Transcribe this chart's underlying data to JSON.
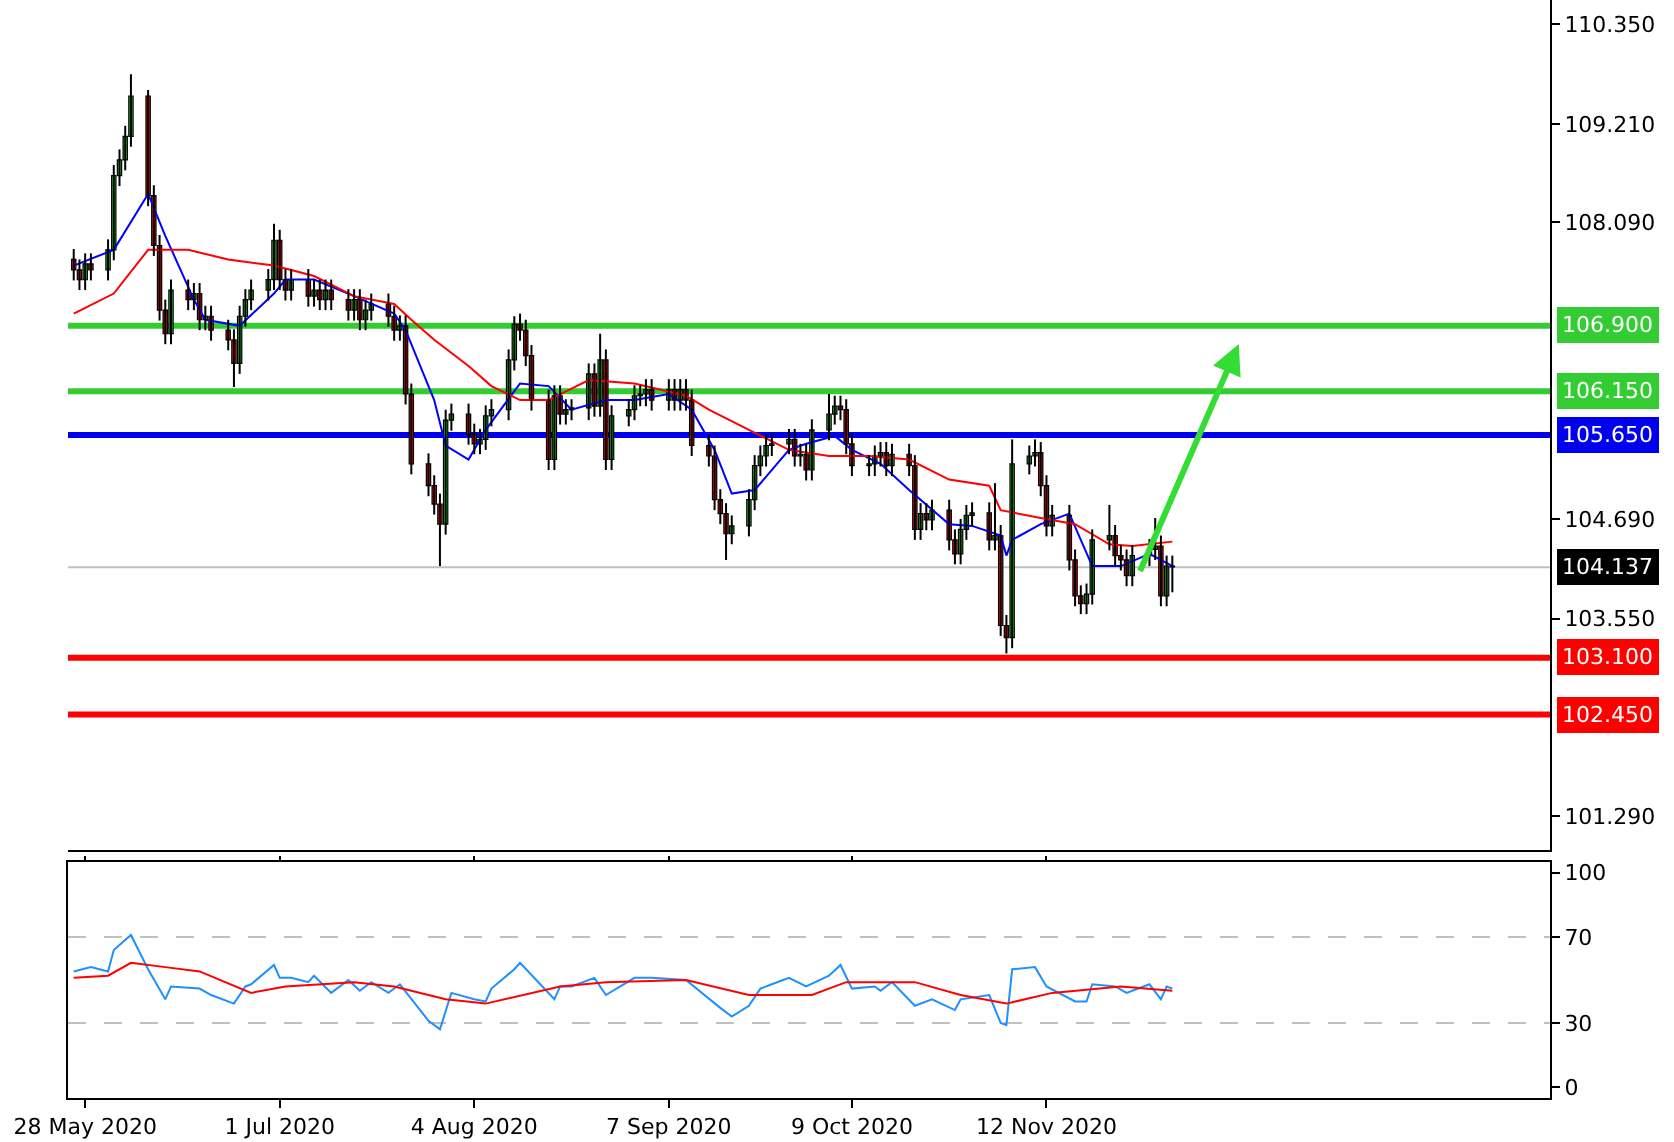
{
  "chart_data": [
    {
      "type": "candlestick",
      "tick_labels": "y",
      "x": [
        "2020-05-26",
        "2020-05-27",
        "2020-05-28",
        "2020-05-29",
        "2020-06-01",
        "2020-06-02",
        "2020-06-03",
        "2020-06-04",
        "2020-06-05",
        "2020-06-08",
        "2020-06-09",
        "2020-06-10",
        "2020-06-11",
        "2020-06-12",
        "2020-06-15",
        "2020-06-16",
        "2020-06-17",
        "2020-06-18",
        "2020-06-19",
        "2020-06-22",
        "2020-06-23",
        "2020-06-24",
        "2020-06-25",
        "2020-06-26",
        "2020-06-29",
        "2020-06-30",
        "2020-07-01",
        "2020-07-02",
        "2020-07-03",
        "2020-07-06",
        "2020-07-07",
        "2020-07-08",
        "2020-07-09",
        "2020-07-10",
        "2020-07-13",
        "2020-07-14",
        "2020-07-15",
        "2020-07-16",
        "2020-07-17",
        "2020-07-20",
        "2020-07-21",
        "2020-07-22",
        "2020-07-23",
        "2020-07-24",
        "2020-07-27",
        "2020-07-28",
        "2020-07-29",
        "2020-07-30",
        "2020-07-31",
        "2020-08-03",
        "2020-08-04",
        "2020-08-05",
        "2020-08-06",
        "2020-08-07",
        "2020-08-10",
        "2020-08-11",
        "2020-08-12",
        "2020-08-13",
        "2020-08-14",
        "2020-08-17",
        "2020-08-18",
        "2020-08-19",
        "2020-08-20",
        "2020-08-21",
        "2020-08-24",
        "2020-08-25",
        "2020-08-26",
        "2020-08-27",
        "2020-08-28",
        "2020-08-31",
        "2020-09-01",
        "2020-09-02",
        "2020-09-03",
        "2020-09-04",
        "2020-09-07",
        "2020-09-08",
        "2020-09-09",
        "2020-09-10",
        "2020-09-11",
        "2020-09-14",
        "2020-09-15",
        "2020-09-16",
        "2020-09-17",
        "2020-09-18",
        "2020-09-21",
        "2020-09-22",
        "2020-09-23",
        "2020-09-24",
        "2020-09-25",
        "2020-09-28",
        "2020-09-29",
        "2020-09-30",
        "2020-10-01",
        "2020-10-02",
        "2020-10-05",
        "2020-10-06",
        "2020-10-07",
        "2020-10-08",
        "2020-10-09",
        "2020-10-12",
        "2020-10-13",
        "2020-10-14",
        "2020-10-15",
        "2020-10-16",
        "2020-10-19",
        "2020-10-20",
        "2020-10-21",
        "2020-10-22",
        "2020-10-23",
        "2020-10-26",
        "2020-10-27",
        "2020-10-28",
        "2020-10-29",
        "2020-10-30",
        "2020-11-02",
        "2020-11-03",
        "2020-11-04",
        "2020-11-05",
        "2020-11-06",
        "2020-11-09",
        "2020-11-10",
        "2020-11-11",
        "2020-11-12",
        "2020-11-13",
        "2020-11-16",
        "2020-11-17",
        "2020-11-18",
        "2020-11-19",
        "2020-11-20",
        "2020-11-23",
        "2020-11-24",
        "2020-11-25",
        "2020-11-26",
        "2020-11-27",
        "2020-11-30",
        "2020-12-01",
        "2020-12-02",
        "2020-12-03",
        "2020-12-04"
      ],
      "ohlc": [
        [
          107.66,
          107.78,
          107.42,
          107.54
        ],
        [
          107.54,
          107.66,
          107.31,
          107.43
        ],
        [
          107.43,
          107.73,
          107.31,
          107.61
        ],
        [
          107.61,
          107.73,
          107.42,
          107.54
        ],
        [
          107.54,
          107.89,
          107.42,
          107.77
        ],
        [
          107.77,
          108.74,
          107.65,
          108.62
        ],
        [
          108.62,
          108.92,
          108.5,
          108.8
        ],
        [
          108.8,
          109.19,
          108.68,
          109.07
        ],
        [
          109.07,
          109.78,
          108.95,
          109.53
        ],
        [
          109.53,
          109.6,
          108.27,
          108.39
        ],
        [
          108.39,
          108.51,
          107.7,
          107.82
        ],
        [
          107.82,
          107.94,
          106.96,
          107.08
        ],
        [
          107.08,
          107.2,
          106.69,
          106.81
        ],
        [
          106.81,
          107.43,
          106.69,
          107.31
        ],
        [
          107.31,
          107.43,
          107.08,
          107.2
        ],
        [
          107.2,
          107.39,
          107.08,
          107.27
        ],
        [
          107.27,
          107.39,
          106.85,
          106.97
        ],
        [
          106.97,
          107.13,
          106.85,
          107.01
        ],
        [
          107.01,
          107.13,
          106.73,
          106.85
        ],
        [
          106.85,
          106.97,
          106.62,
          106.74
        ],
        [
          106.74,
          106.86,
          106.2,
          106.47
        ],
        [
          106.47,
          107.13,
          106.35,
          107.01
        ],
        [
          107.01,
          107.32,
          106.89,
          107.2
        ],
        [
          107.2,
          107.43,
          107.08,
          107.31
        ],
        [
          107.31,
          107.55,
          107.19,
          107.43
        ],
        [
          107.43,
          108.07,
          107.31,
          107.88
        ],
        [
          107.88,
          108.0,
          107.31,
          107.43
        ],
        [
          107.43,
          107.55,
          107.19,
          107.31
        ],
        [
          107.31,
          107.55,
          107.19,
          107.43
        ],
        [
          107.43,
          107.55,
          107.12,
          107.24
        ],
        [
          107.24,
          107.43,
          107.12,
          107.31
        ],
        [
          107.31,
          107.43,
          107.08,
          107.2
        ],
        [
          107.2,
          107.43,
          107.08,
          107.31
        ],
        [
          107.31,
          107.43,
          107.08,
          107.2
        ],
        [
          107.2,
          107.32,
          106.96,
          107.08
        ],
        [
          107.08,
          107.32,
          106.96,
          107.2
        ],
        [
          107.2,
          107.32,
          106.85,
          106.97
        ],
        [
          106.97,
          107.2,
          106.85,
          107.08
        ],
        [
          107.08,
          107.27,
          106.96,
          107.15
        ],
        [
          107.15,
          107.27,
          106.89,
          107.01
        ],
        [
          107.01,
          107.13,
          106.73,
          106.85
        ],
        [
          106.85,
          107.02,
          106.73,
          106.9
        ],
        [
          106.9,
          107.02,
          106.0,
          106.12
        ],
        [
          106.12,
          106.24,
          105.2,
          105.32
        ],
        [
          105.32,
          105.44,
          104.95,
          105.07
        ],
        [
          105.07,
          105.19,
          104.74,
          104.86
        ],
        [
          104.86,
          104.98,
          104.15,
          104.63
        ],
        [
          104.63,
          105.94,
          104.51,
          105.82
        ],
        [
          105.82,
          106.01,
          105.7,
          105.89
        ],
        [
          105.89,
          106.01,
          105.54,
          105.66
        ],
        [
          105.66,
          105.78,
          105.43,
          105.55
        ],
        [
          105.55,
          105.72,
          105.43,
          105.6
        ],
        [
          105.6,
          105.99,
          105.48,
          105.87
        ],
        [
          105.87,
          106.06,
          105.75,
          105.94
        ],
        [
          105.94,
          106.63,
          105.82,
          106.51
        ],
        [
          106.51,
          107.01,
          106.39,
          106.92
        ],
        [
          106.92,
          107.04,
          106.73,
          106.85
        ],
        [
          106.85,
          106.97,
          106.44,
          106.56
        ],
        [
          106.56,
          106.68,
          105.93,
          106.05
        ],
        [
          106.05,
          106.17,
          105.25,
          105.37
        ],
        [
          105.37,
          106.22,
          105.25,
          106.1
        ],
        [
          106.1,
          106.22,
          105.77,
          105.89
        ],
        [
          105.89,
          106.06,
          105.77,
          105.94
        ],
        [
          105.94,
          106.06,
          105.82,
          105.96
        ],
        [
          105.96,
          106.47,
          105.82,
          106.35
        ],
        [
          106.35,
          106.47,
          105.86,
          105.98
        ],
        [
          105.98,
          106.81,
          105.86,
          106.51
        ],
        [
          106.51,
          106.63,
          105.25,
          105.37
        ],
        [
          105.37,
          105.99,
          105.25,
          105.87
        ],
        [
          105.87,
          106.06,
          105.75,
          105.94
        ],
        [
          105.94,
          106.22,
          105.82,
          106.1
        ],
        [
          106.1,
          106.22,
          105.98,
          106.12
        ],
        [
          106.12,
          106.29,
          105.98,
          106.17
        ],
        [
          106.17,
          106.29,
          105.93,
          106.05
        ],
        [
          106.05,
          106.29,
          105.93,
          106.17
        ],
        [
          106.17,
          106.29,
          105.93,
          106.05
        ],
        [
          106.05,
          106.29,
          105.93,
          106.17
        ],
        [
          106.17,
          106.29,
          105.93,
          106.05
        ],
        [
          106.05,
          106.17,
          105.41,
          105.53
        ],
        [
          105.53,
          105.65,
          105.29,
          105.41
        ],
        [
          105.41,
          105.53,
          104.79,
          104.91
        ],
        [
          104.91,
          105.03,
          104.63,
          104.75
        ],
        [
          104.75,
          104.87,
          104.22,
          104.52
        ],
        [
          104.52,
          104.73,
          104.4,
          104.61
        ],
        [
          104.61,
          105.03,
          104.49,
          104.91
        ],
        [
          104.91,
          105.42,
          104.79,
          105.3
        ],
        [
          105.3,
          105.53,
          105.18,
          105.41
        ],
        [
          105.41,
          105.65,
          105.29,
          105.53
        ],
        [
          105.53,
          105.67,
          105.41,
          105.55
        ],
        [
          105.55,
          105.72,
          105.43,
          105.6
        ],
        [
          105.6,
          105.72,
          105.29,
          105.41
        ],
        [
          105.41,
          105.55,
          105.29,
          105.43
        ],
        [
          105.43,
          105.55,
          105.13,
          105.25
        ],
        [
          105.25,
          105.83,
          105.13,
          105.71
        ],
        [
          105.71,
          106.12,
          105.59,
          105.89
        ],
        [
          105.89,
          106.1,
          105.77,
          105.98
        ],
        [
          105.98,
          106.1,
          105.82,
          105.94
        ],
        [
          105.94,
          106.06,
          105.43,
          105.55
        ],
        [
          105.55,
          105.67,
          105.18,
          105.3
        ],
        [
          105.3,
          105.42,
          105.18,
          105.32
        ],
        [
          105.32,
          105.53,
          105.18,
          105.41
        ],
        [
          105.41,
          105.57,
          105.29,
          105.45
        ],
        [
          105.45,
          105.57,
          105.18,
          105.3
        ],
        [
          105.3,
          105.55,
          105.18,
          105.43
        ],
        [
          105.43,
          105.55,
          105.18,
          105.3
        ],
        [
          105.3,
          105.42,
          104.45,
          104.57
        ],
        [
          104.57,
          104.87,
          104.45,
          104.75
        ],
        [
          104.75,
          104.87,
          104.56,
          104.68
        ],
        [
          104.68,
          104.91,
          104.56,
          104.79
        ],
        [
          104.79,
          104.91,
          104.33,
          104.45
        ],
        [
          104.45,
          104.57,
          104.17,
          104.29
        ],
        [
          104.29,
          104.69,
          104.17,
          104.57
        ],
        [
          104.57,
          104.85,
          104.45,
          104.73
        ],
        [
          104.73,
          104.88,
          104.61,
          104.76
        ],
        [
          104.76,
          104.88,
          104.33,
          104.45
        ],
        [
          104.45,
          105.1,
          104.33,
          104.5
        ],
        [
          104.5,
          104.62,
          103.35,
          103.47
        ],
        [
          103.47,
          103.59,
          103.15,
          103.33
        ],
        [
          103.33,
          105.6,
          103.21,
          105.32
        ],
        [
          105.32,
          105.53,
          105.2,
          105.41
        ],
        [
          105.41,
          105.6,
          105.29,
          105.45
        ],
        [
          105.45,
          105.57,
          104.95,
          105.07
        ],
        [
          105.07,
          105.19,
          104.49,
          104.61
        ],
        [
          104.61,
          104.85,
          104.49,
          104.73
        ],
        [
          104.73,
          104.85,
          104.1,
          104.22
        ],
        [
          104.22,
          104.34,
          103.69,
          103.81
        ],
        [
          103.81,
          103.93,
          103.6,
          103.72
        ],
        [
          103.72,
          103.95,
          103.6,
          103.83
        ],
        [
          103.83,
          104.57,
          103.71,
          104.45
        ],
        [
          104.45,
          104.85,
          104.33,
          104.5
        ],
        [
          104.5,
          104.62,
          104.15,
          104.27
        ],
        [
          104.27,
          104.39,
          104.1,
          104.22
        ],
        [
          104.22,
          104.34,
          103.92,
          104.04
        ],
        [
          104.04,
          104.39,
          103.92,
          104.27
        ],
        [
          104.27,
          104.46,
          104.15,
          104.34
        ],
        [
          104.34,
          104.7,
          104.22,
          104.38
        ],
        [
          104.38,
          104.5,
          103.69,
          103.81
        ],
        [
          103.81,
          104.27,
          103.69,
          104.15
        ],
        [
          104.15,
          104.27,
          103.85,
          104.14
        ]
      ],
      "series": [
        {
          "type": "line",
          "color": "#0000ff",
          "x": [
            "2020-05-26",
            "2020-06-02",
            "2020-06-08",
            "2020-06-11",
            "2020-06-16",
            "2020-06-18",
            "2020-06-24",
            "2020-06-30",
            "2020-07-02",
            "2020-07-07",
            "2020-07-14",
            "2020-07-21",
            "2020-07-23",
            "2020-07-28",
            "2020-07-30",
            "2020-08-03",
            "2020-08-06",
            "2020-08-12",
            "2020-08-17",
            "2020-08-21",
            "2020-08-27",
            "2020-09-01",
            "2020-09-07",
            "2020-09-11",
            "2020-09-15",
            "2020-09-18",
            "2020-09-22",
            "2020-09-28",
            "2020-10-01",
            "2020-10-06",
            "2020-10-09",
            "2020-10-14",
            "2020-10-19",
            "2020-10-26",
            "2020-10-30",
            "2020-11-04",
            "2020-11-05",
            "2020-11-06",
            "2020-11-11",
            "2020-11-16",
            "2020-11-18",
            "2020-11-20",
            "2020-11-25",
            "2020-11-30",
            "2020-12-02",
            "2020-12-04"
          ],
          "values": [
            107.59,
            107.77,
            108.41,
            107.93,
            107.2,
            106.97,
            106.9,
            107.27,
            107.43,
            107.43,
            107.24,
            107.04,
            106.85,
            106.05,
            105.53,
            105.37,
            105.71,
            106.24,
            106.21,
            105.94,
            106.05,
            106.05,
            106.12,
            105.94,
            105.48,
            104.98,
            105.02,
            105.48,
            105.55,
            105.64,
            105.48,
            105.32,
            105.02,
            104.63,
            104.61,
            104.5,
            104.27,
            104.45,
            104.63,
            104.75,
            104.45,
            104.15,
            104.15,
            104.29,
            104.22,
            104.15
          ]
        },
        {
          "type": "line",
          "color": "#ff0000",
          "x": [
            "2020-05-26",
            "2020-06-02",
            "2020-06-08",
            "2020-06-15",
            "2020-06-22",
            "2020-06-30",
            "2020-07-07",
            "2020-07-14",
            "2020-07-21",
            "2020-07-24",
            "2020-07-28",
            "2020-08-03",
            "2020-08-07",
            "2020-08-12",
            "2020-08-17",
            "2020-08-24",
            "2020-09-01",
            "2020-09-10",
            "2020-09-14",
            "2020-09-21",
            "2020-09-28",
            "2020-10-05",
            "2020-10-12",
            "2020-10-19",
            "2020-10-26",
            "2020-11-02",
            "2020-11-04",
            "2020-11-11",
            "2020-11-17",
            "2020-11-23",
            "2020-11-27",
            "2020-12-04"
          ],
          "values": [
            107.04,
            107.27,
            107.77,
            107.77,
            107.66,
            107.59,
            107.47,
            107.24,
            107.15,
            106.97,
            106.74,
            106.44,
            106.21,
            106.05,
            106.05,
            106.28,
            106.24,
            106.1,
            105.94,
            105.71,
            105.48,
            105.41,
            105.41,
            105.37,
            105.14,
            105.07,
            104.79,
            104.7,
            104.63,
            104.4,
            104.38,
            104.43
          ]
        }
      ],
      "xlim": [
        "2020-05-25",
        "2021-02-08"
      ],
      "ylim": [
        100.9,
        110.63
      ],
      "yticks": [
        {
          "value": 110.35,
          "label": "110.350"
        },
        {
          "value": 109.21,
          "label": "109.210"
        },
        {
          "value": 108.09,
          "label": "108.090"
        },
        {
          "value": 104.69,
          "label": "104.690"
        },
        {
          "value": 103.55,
          "label": "103.550"
        },
        {
          "value": 101.29,
          "label": "101.290"
        }
      ],
      "ref_lines": [
        {
          "axis": "y",
          "value": 106.9,
          "label": "106.900",
          "color": "#33cc33"
        },
        {
          "axis": "y",
          "value": 106.15,
          "label": "106.150",
          "color": "#33cc33"
        },
        {
          "axis": "y",
          "value": 105.65,
          "label": "105.650",
          "color": "#0000ee"
        },
        {
          "axis": "y",
          "value": 104.137,
          "label": "104.137",
          "color": "#c0c0c0",
          "line_style": "solid"
        },
        {
          "axis": "y",
          "value": 103.1,
          "label": "103.100",
          "color": "#ff0000"
        },
        {
          "axis": "y",
          "value": 102.45,
          "label": "102.450",
          "color": "#ff0000"
        }
      ]
    },
    {
      "type": "line",
      "series": [
        {
          "color": "#1e90ff",
          "x": [
            "2020-05-26",
            "2020-05-29",
            "2020-06-01",
            "2020-06-02",
            "2020-06-05",
            "2020-06-08",
            "2020-06-11",
            "2020-06-12",
            "2020-06-17",
            "2020-06-19",
            "2020-06-23",
            "2020-06-25",
            "2020-06-26",
            "2020-06-30",
            "2020-07-01",
            "2020-07-03",
            "2020-07-06",
            "2020-07-07",
            "2020-07-10",
            "2020-07-13",
            "2020-07-15",
            "2020-07-17",
            "2020-07-20",
            "2020-07-22",
            "2020-07-27",
            "2020-07-29",
            "2020-07-31",
            "2020-08-04",
            "2020-08-06",
            "2020-08-07",
            "2020-08-11",
            "2020-08-12",
            "2020-08-18",
            "2020-08-19",
            "2020-08-21",
            "2020-08-25",
            "2020-08-26",
            "2020-08-27",
            "2020-09-01",
            "2020-09-04",
            "2020-09-10",
            "2020-09-16",
            "2020-09-18",
            "2020-09-21",
            "2020-09-23",
            "2020-09-25",
            "2020-09-28",
            "2020-10-01",
            "2020-10-05",
            "2020-10-07",
            "2020-10-09",
            "2020-10-13",
            "2020-10-14",
            "2020-10-16",
            "2020-10-20",
            "2020-10-23",
            "2020-10-27",
            "2020-10-28",
            "2020-11-02",
            "2020-11-04",
            "2020-11-05",
            "2020-11-06",
            "2020-11-10",
            "2020-11-12",
            "2020-11-17",
            "2020-11-19",
            "2020-11-20",
            "2020-11-24",
            "2020-11-26",
            "2020-11-30",
            "2020-12-02",
            "2020-12-03",
            "2020-12-04"
          ],
          "values": [
            54,
            56,
            54,
            64,
            71,
            55,
            41,
            47,
            46,
            43,
            39,
            47,
            48,
            57,
            51,
            51,
            49,
            52,
            44,
            50,
            45,
            49,
            44,
            48,
            31,
            27,
            44,
            41,
            40,
            46,
            55,
            58,
            41,
            47,
            47,
            51,
            47,
            43,
            51,
            51,
            50,
            37,
            33,
            38,
            46,
            48,
            51,
            47,
            52,
            57,
            46,
            47,
            45,
            49,
            38,
            41,
            36,
            41,
            43,
            30,
            29,
            55,
            56,
            47,
            40,
            40,
            48,
            47,
            44,
            48,
            41,
            47,
            46
          ]
        },
        {
          "color": "#ff0000",
          "x": [
            "2020-05-26",
            "2020-06-01",
            "2020-06-05",
            "2020-06-11",
            "2020-06-17",
            "2020-06-26",
            "2020-07-02",
            "2020-07-14",
            "2020-07-21",
            "2020-07-30",
            "2020-08-06",
            "2020-08-19",
            "2020-08-27",
            "2020-09-10",
            "2020-09-21",
            "2020-10-02",
            "2020-10-08",
            "2020-10-20",
            "2020-10-28",
            "2020-11-05",
            "2020-11-13",
            "2020-11-25",
            "2020-12-04"
          ],
          "values": [
            51,
            52,
            58,
            56,
            54,
            44,
            47,
            49,
            47,
            41,
            39,
            47,
            49,
            50,
            43,
            43,
            49,
            49,
            43,
            39,
            44,
            47,
            45
          ]
        }
      ],
      "xlim": [
        "2020-05-25",
        "2021-02-08"
      ],
      "xticks": [
        {
          "value": "2020-05-28",
          "label": "28 May 2020"
        },
        {
          "value": "2020-07-01",
          "label": "1 Jul 2020"
        },
        {
          "value": "2020-08-04",
          "label": "4 Aug 2020"
        },
        {
          "value": "2020-09-07",
          "label": "7 Sep 2020"
        },
        {
          "value": "2020-10-09",
          "label": "9 Oct 2020"
        },
        {
          "value": "2020-11-12",
          "label": "12 Nov 2020"
        }
      ],
      "ylim": [
        -5,
        105
      ],
      "yticks": [
        0,
        30,
        70,
        100
      ],
      "ref_lines": [
        {
          "axis": "y",
          "value": 70,
          "color": "#c0c0c0",
          "line_style": "dashed"
        },
        {
          "axis": "y",
          "value": 30,
          "color": "#c0c0c0",
          "line_style": "dashed"
        }
      ]
    }
  ]
}
